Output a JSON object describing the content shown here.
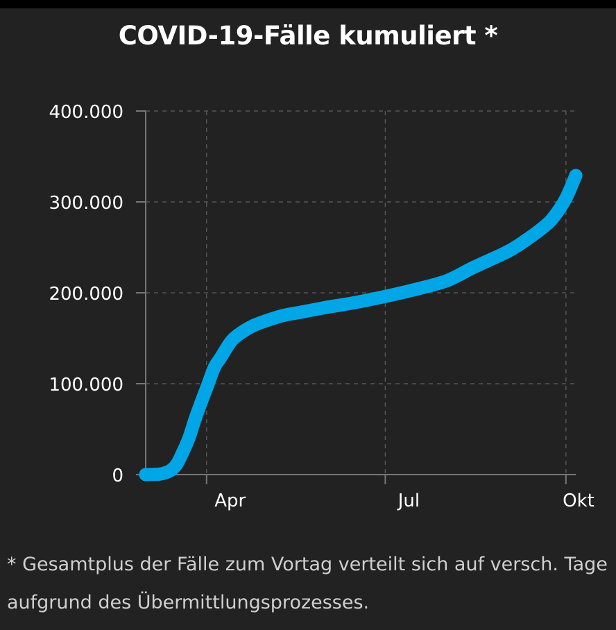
{
  "colors": {
    "background": "#222222",
    "series": "#00a6e6",
    "grid": "#555555",
    "axis": "#777777",
    "text": "#ffffff",
    "footnote": "#cfcfcf"
  },
  "chart_data": {
    "type": "line",
    "title": "COVID-19-Fälle kumuliert *",
    "xlabel": "",
    "ylabel": "",
    "ylim": [
      0,
      400000
    ],
    "y_ticks": [
      {
        "value": 0,
        "label": "0"
      },
      {
        "value": 100000,
        "label": "100.000"
      },
      {
        "value": 200000,
        "label": "200.000"
      },
      {
        "value": 300000,
        "label": "300.000"
      },
      {
        "value": 400000,
        "label": "400.000"
      }
    ],
    "xlim": [
      "2020-03-01",
      "2020-10-06"
    ],
    "x_ticks": [
      {
        "value": "2020-04-01",
        "label": "Apr"
      },
      {
        "value": "2020-07-01",
        "label": "Jul"
      },
      {
        "value": "2020-10-01",
        "label": "Okt"
      }
    ],
    "grid": true,
    "legend": "none",
    "series": [
      {
        "x": [
          "2020-03-01",
          "2020-03-08",
          "2020-03-11",
          "2020-03-14",
          "2020-03-17",
          "2020-03-20",
          "2020-03-23",
          "2020-03-26",
          "2020-03-29",
          "2020-04-01",
          "2020-04-05",
          "2020-04-08",
          "2020-04-12",
          "2020-04-15",
          "2020-04-20",
          "2020-04-25",
          "2020-05-01",
          "2020-05-10",
          "2020-05-20",
          "2020-06-01",
          "2020-06-15",
          "2020-07-01",
          "2020-07-15",
          "2020-08-01",
          "2020-08-15",
          "2020-09-01",
          "2020-09-10",
          "2020-09-20",
          "2020-09-25",
          "2020-10-01",
          "2020-10-06"
        ],
        "y": [
          0,
          500,
          2000,
          5000,
          12000,
          25000,
          40000,
          60000,
          78000,
          95000,
          118000,
          128000,
          142000,
          150000,
          158000,
          164000,
          169000,
          175000,
          179000,
          184000,
          189000,
          196000,
          203000,
          213000,
          228000,
          245000,
          257000,
          273000,
          284000,
          304000,
          329000
        ]
      }
    ]
  },
  "footnote": {
    "line1": "* Gesamtplus der Fälle zum Vortag verteilt sich auf versch. Tage",
    "line2": "aufgrund des Übermittlungsprozesses."
  }
}
